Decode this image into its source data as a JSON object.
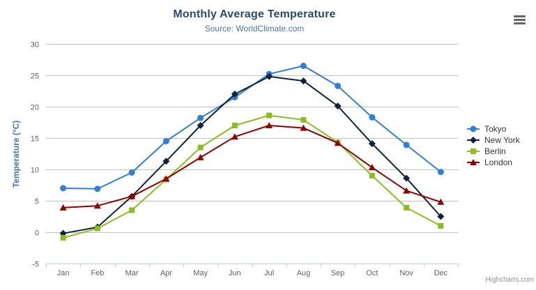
{
  "header": {
    "title": "Monthly Average Temperature",
    "subtitle": "Source: WorldClimate.com"
  },
  "chart_data": {
    "type": "line",
    "title": "Monthly Average Temperature",
    "subtitle": "Source: WorldClimate.com",
    "xlabel": "",
    "ylabel": "Temperature (°C)",
    "categories": [
      "Jan",
      "Feb",
      "Mar",
      "Apr",
      "May",
      "Jun",
      "Jul",
      "Aug",
      "Sep",
      "Oct",
      "Nov",
      "Dec"
    ],
    "series": [
      {
        "name": "Tokyo",
        "color": "#2f7ed8",
        "marker": "circle",
        "values": [
          7.0,
          6.9,
          9.5,
          14.5,
          18.2,
          21.5,
          25.2,
          26.5,
          23.3,
          18.3,
          13.9,
          9.6
        ]
      },
      {
        "name": "New York",
        "color": "#0d233a",
        "marker": "diamond",
        "values": [
          -0.2,
          0.8,
          5.7,
          11.3,
          17.0,
          22.0,
          24.8,
          24.1,
          20.1,
          14.1,
          8.6,
          2.5
        ]
      },
      {
        "name": "Berlin",
        "color": "#8bbc21",
        "marker": "square",
        "values": [
          -0.9,
          0.6,
          3.5,
          8.4,
          13.5,
          17.0,
          18.6,
          17.9,
          14.3,
          9.0,
          3.9,
          1.0
        ]
      },
      {
        "name": "London",
        "color": "#910000",
        "marker": "triangle-up",
        "values": [
          3.9,
          4.2,
          5.7,
          8.5,
          11.9,
          15.2,
          17.0,
          16.6,
          14.2,
          10.3,
          6.6,
          4.8
        ]
      }
    ],
    "ylim": [
      -5,
      30
    ],
    "ytick_step": 5,
    "grid": true,
    "legend_position": "right",
    "grid_color": "#c0c0c0",
    "xaxis_line_color": "#c0d0e0"
  },
  "icons": {
    "context_menu": "hamburger-menu-icon"
  },
  "credits": {
    "label": "Highcharts.com"
  }
}
